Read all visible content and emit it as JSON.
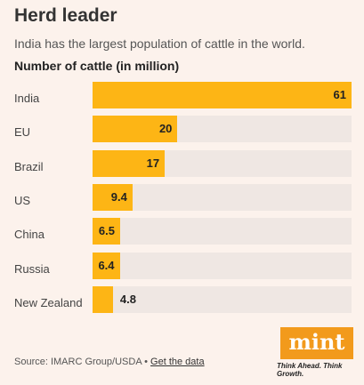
{
  "header": {
    "title": "Herd leader",
    "subtitle": "India has the largest population of cattle in the world."
  },
  "chart_data": {
    "type": "bar",
    "orientation": "horizontal",
    "title": "Herd leader",
    "subtitle": "India has the largest population of cattle in the world.",
    "xlabel": "Number of cattle (in million)",
    "categories": [
      "India",
      "EU",
      "Brazil",
      "US",
      "China",
      "Russia",
      "New Zealand"
    ],
    "values": [
      61,
      20,
      17,
      9.4,
      6.5,
      6.4,
      4.8
    ],
    "value_labels": [
      "61",
      "20",
      "17",
      "9.4",
      "6.5",
      "6.4",
      "4.8"
    ],
    "xlim": [
      0,
      61
    ],
    "grid": false,
    "colors": {
      "bar": "#fdb515",
      "track": "#efe7e3",
      "background": "#fcf2ec"
    }
  },
  "footer": {
    "source_text": "Source: IMARC Group/USDA •",
    "link_text": "Get the data",
    "logo_text": "mint",
    "tagline": "Think Ahead. Think Growth.",
    "logo_color": "#f29a1c"
  }
}
